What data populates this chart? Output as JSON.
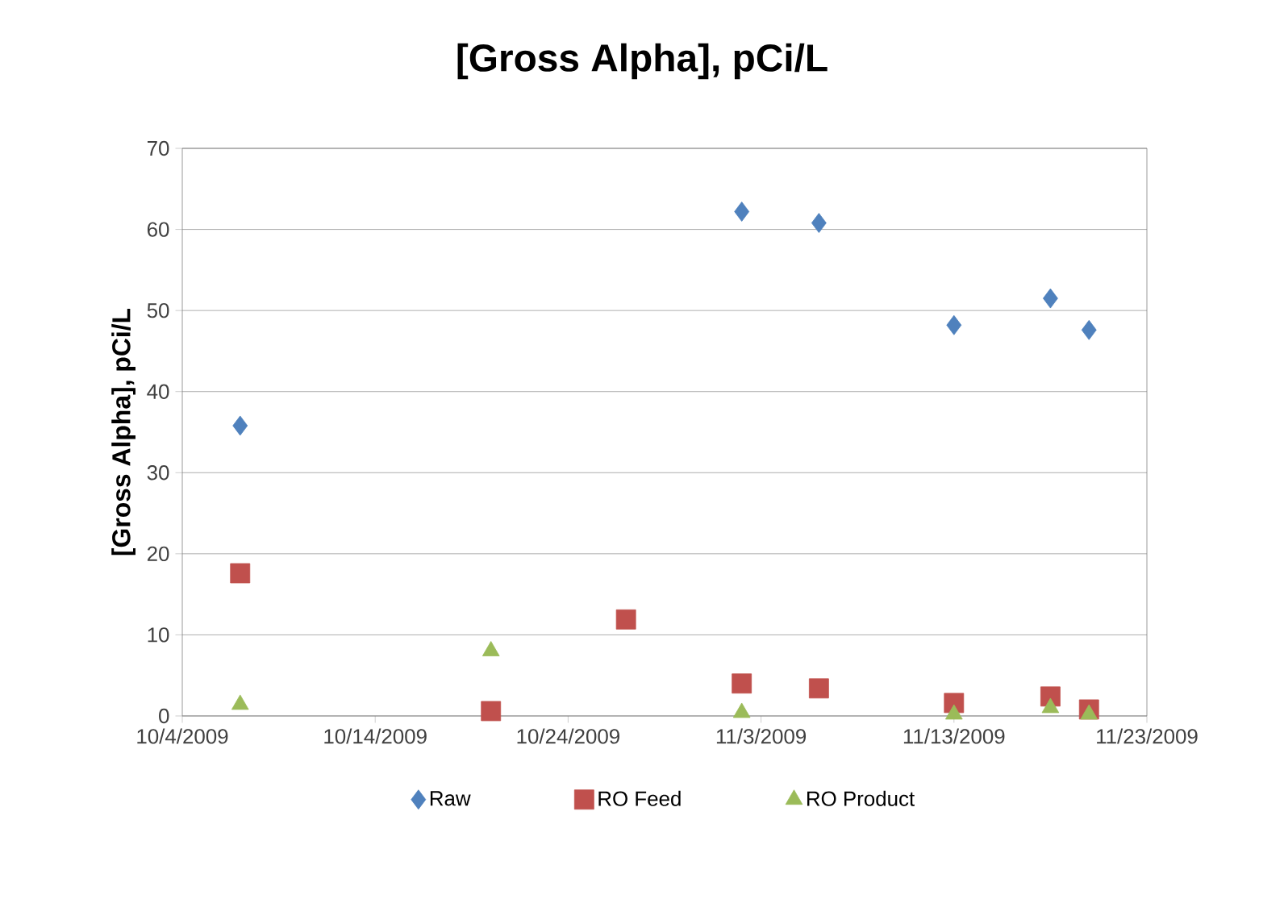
{
  "chart_data": {
    "type": "scatter",
    "title": "[Gross Alpha], pCi/L",
    "ylabel": "[Gross Alpha], pCi/L",
    "xlim": [
      "2009-10-04",
      "2009-11-23"
    ],
    "xticks": [
      {
        "value": "2009-10-04",
        "label": "10/4/2009"
      },
      {
        "value": "2009-10-14",
        "label": "10/14/2009"
      },
      {
        "value": "2009-10-24",
        "label": "10/24/2009"
      },
      {
        "value": "2009-11-03",
        "label": "11/3/2009"
      },
      {
        "value": "2009-11-13",
        "label": "11/13/2009"
      },
      {
        "value": "2009-11-23",
        "label": "11/23/2009"
      }
    ],
    "ylim": [
      0,
      70
    ],
    "yticks": [
      0,
      10,
      20,
      30,
      40,
      50,
      60,
      70
    ],
    "grid": "y",
    "legend": "bottom",
    "series": [
      {
        "name": "Raw",
        "color": "#4f81bd",
        "marker": "diamond",
        "x": [
          "2009-10-07",
          "2009-11-02",
          "2009-11-06",
          "2009-11-13",
          "2009-11-18",
          "2009-11-20"
        ],
        "values": [
          35.8,
          62.2,
          60.8,
          48.2,
          51.5,
          47.6
        ]
      },
      {
        "name": "RO Feed",
        "color": "#c0504d",
        "marker": "square",
        "x": [
          "2009-10-07",
          "2009-10-20",
          "2009-10-27",
          "2009-11-02",
          "2009-11-06",
          "2009-11-13",
          "2009-11-18",
          "2009-11-20"
        ],
        "values": [
          17.6,
          0.6,
          11.9,
          4.0,
          3.4,
          1.6,
          2.4,
          0.8
        ]
      },
      {
        "name": "RO Product",
        "color": "#9bbb59",
        "marker": "triangle",
        "x": [
          "2009-10-07",
          "2009-10-20",
          "2009-11-02",
          "2009-11-13",
          "2009-11-18",
          "2009-11-20"
        ],
        "values": [
          1.4,
          8.0,
          0.4,
          0.2,
          1.0,
          0.2
        ]
      }
    ]
  }
}
